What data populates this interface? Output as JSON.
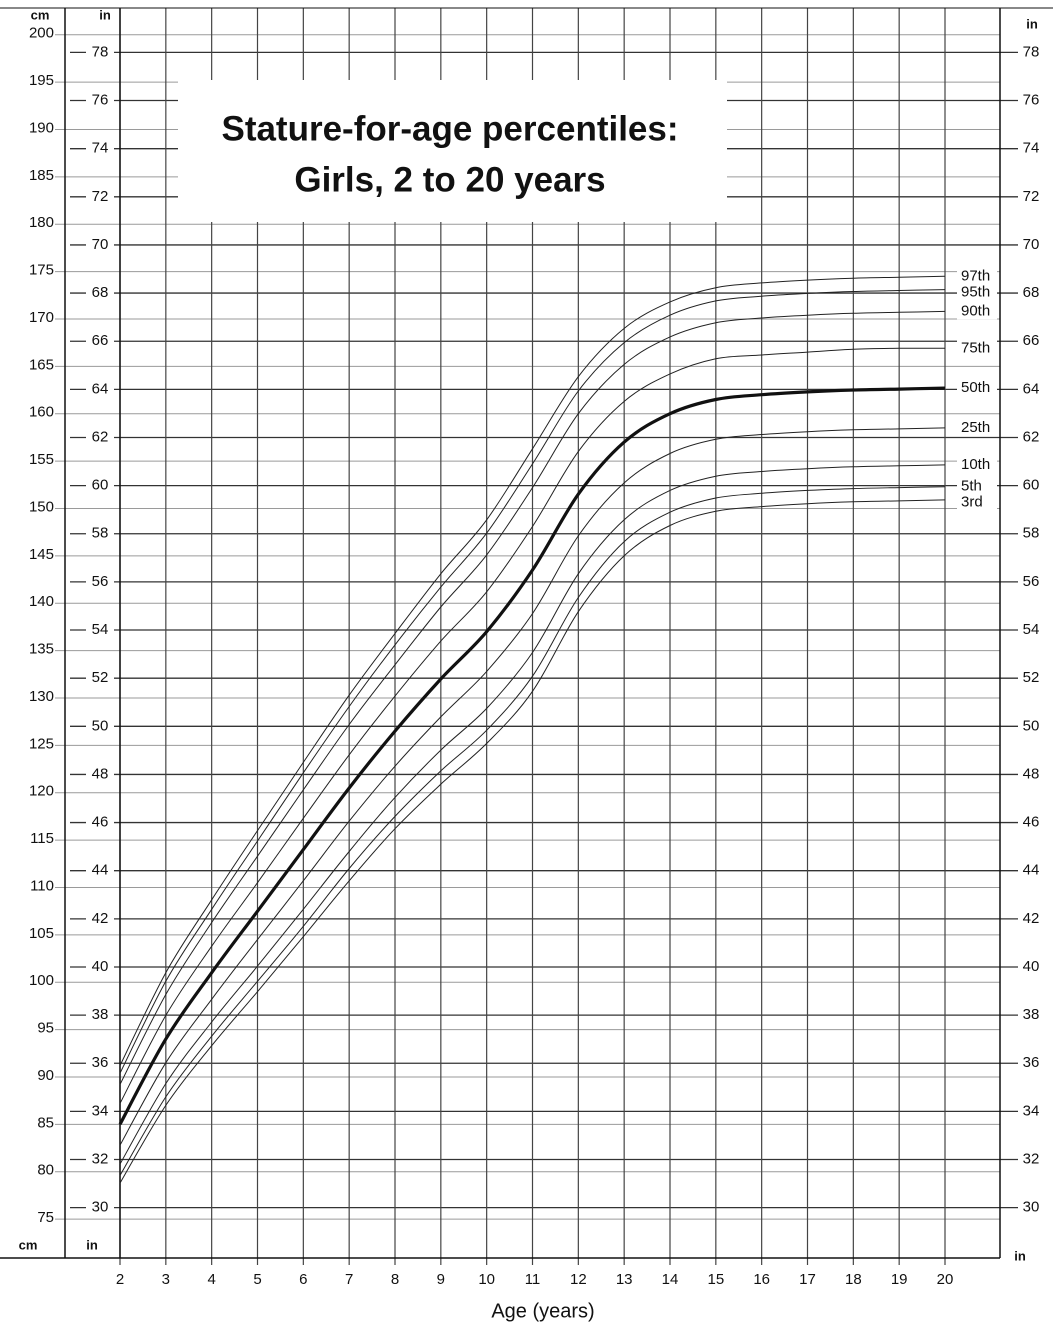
{
  "chart_data": {
    "type": "line",
    "title": "Stature-for-age percentiles:",
    "subtitle": "Girls, 2 to 20 years",
    "x_label": "Age (years)",
    "y_label": "cm",
    "y2_label": "in",
    "x": [
      2,
      3,
      4,
      5,
      6,
      7,
      8,
      9,
      10,
      11,
      12,
      13,
      14,
      15,
      16,
      17,
      18,
      19,
      20
    ],
    "xlim": [
      2,
      21.2
    ],
    "xticks": [
      2,
      3,
      4,
      5,
      6,
      7,
      8,
      9,
      10,
      11,
      12,
      13,
      14,
      15,
      16,
      17,
      18,
      19,
      20
    ],
    "ylim": [
      71,
      202.5
    ],
    "yticks": [
      75,
      80,
      85,
      90,
      95,
      100,
      105,
      110,
      115,
      120,
      125,
      130,
      135,
      140,
      145,
      150,
      155,
      160,
      165,
      170,
      175,
      180,
      185,
      190,
      195,
      200
    ],
    "y2lim": [
      27.95,
      79.72
    ],
    "y2ticks": [
      30,
      32,
      34,
      36,
      38,
      40,
      42,
      44,
      46,
      48,
      50,
      52,
      54,
      56,
      58,
      60,
      62,
      64,
      66,
      68,
      70,
      72,
      74,
      76,
      78
    ],
    "grid": true,
    "series": [
      {
        "name": "97th",
        "color": "#222222",
        "line_width": 1,
        "values": [
          91.2,
          101.0,
          108.7,
          116.0,
          123.2,
          130.3,
          136.8,
          143.1,
          148.8,
          156.3,
          163.9,
          169.0,
          171.8,
          173.3,
          173.8,
          174.1,
          174.3,
          174.4,
          174.5
        ]
      },
      {
        "name": "95th",
        "color": "#222222",
        "line_width": 1,
        "values": [
          90.4,
          100.1,
          107.7,
          114.9,
          122.1,
          129.1,
          135.6,
          141.7,
          147.4,
          154.7,
          162.4,
          167.5,
          170.4,
          171.9,
          172.4,
          172.7,
          172.9,
          173.0,
          173.1
        ]
      },
      {
        "name": "90th",
        "color": "#222222",
        "line_width": 1,
        "values": [
          89.2,
          98.7,
          106.3,
          113.3,
          120.3,
          127.2,
          133.5,
          139.6,
          145.1,
          152.2,
          160.0,
          165.2,
          168.1,
          169.6,
          170.1,
          170.4,
          170.6,
          170.7,
          170.8
        ]
      },
      {
        "name": "75th",
        "color": "#222222",
        "line_width": 1,
        "values": [
          87.2,
          96.5,
          103.8,
          110.5,
          117.3,
          124.0,
          130.2,
          136.0,
          141.2,
          148.1,
          156.0,
          161.3,
          164.2,
          165.8,
          166.2,
          166.5,
          166.8,
          166.9,
          166.9
        ]
      },
      {
        "name": "50th",
        "color": "#111111",
        "line_width": 3.2,
        "values": [
          85.0,
          94.0,
          101.0,
          107.5,
          114.0,
          120.5,
          126.5,
          132.0,
          137.0,
          143.5,
          151.5,
          157.0,
          160.0,
          161.5,
          162.0,
          162.3,
          162.5,
          162.6,
          162.7
        ]
      },
      {
        "name": "25th",
        "color": "#222222",
        "line_width": 1,
        "values": [
          82.8,
          91.5,
          98.2,
          104.5,
          110.7,
          117.0,
          122.8,
          128.0,
          132.8,
          138.9,
          147.1,
          152.7,
          155.8,
          157.3,
          157.8,
          158.1,
          158.3,
          158.4,
          158.5
        ]
      },
      {
        "name": "10th",
        "color": "#222222",
        "line_width": 1,
        "values": [
          80.8,
          89.3,
          95.8,
          101.7,
          107.7,
          113.8,
          119.5,
          124.5,
          128.9,
          134.8,
          143.1,
          148.8,
          151.9,
          153.4,
          153.9,
          154.2,
          154.4,
          154.5,
          154.6
        ]
      },
      {
        "name": "5th",
        "color": "#222222",
        "line_width": 1,
        "values": [
          79.6,
          87.9,
          94.3,
          100.1,
          105.9,
          112.0,
          117.5,
          122.3,
          126.6,
          132.3,
          140.6,
          146.5,
          149.6,
          151.1,
          151.6,
          151.9,
          152.1,
          152.2,
          152.3
        ]
      },
      {
        "name": "3rd",
        "color": "#222222",
        "line_width": 1,
        "values": [
          78.8,
          87.0,
          93.3,
          99.0,
          104.8,
          110.7,
          116.2,
          120.9,
          125.2,
          130.7,
          139.1,
          145.0,
          148.2,
          149.7,
          150.2,
          150.5,
          150.7,
          150.8,
          150.9
        ]
      }
    ]
  }
}
